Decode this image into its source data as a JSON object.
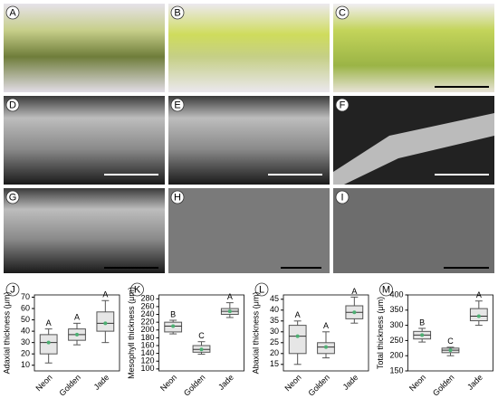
{
  "panels": [
    "A",
    "B",
    "C",
    "D",
    "E",
    "F",
    "G",
    "H",
    "I"
  ],
  "chart_data": [
    {
      "type": "box",
      "panel": "J",
      "y_label": "Adaxial thickness (μm)",
      "categories": [
        "Neon",
        "Golden",
        "Jade"
      ],
      "boxes": [
        {
          "min": 12,
          "q1": 20,
          "median": 30,
          "q3": 37,
          "max": 42
        },
        {
          "min": 28,
          "q1": 32,
          "median": 37,
          "q3": 42,
          "max": 47
        },
        {
          "min": 30,
          "q1": 40,
          "median": 47,
          "q3": 57,
          "max": 67
        }
      ],
      "letters": [
        "A",
        "A",
        "A"
      ],
      "ylim": [
        5,
        72
      ],
      "yticks": [
        10,
        20,
        30,
        40,
        50,
        60,
        70
      ]
    },
    {
      "type": "box",
      "panel": "K",
      "y_label": "Mesophyll thickness (μm)",
      "categories": [
        "Neon",
        "Golden",
        "Jade"
      ],
      "boxes": [
        {
          "min": 190,
          "q1": 195,
          "median": 210,
          "q3": 220,
          "max": 225
        },
        {
          "min": 138,
          "q1": 143,
          "median": 150,
          "q3": 160,
          "max": 170
        },
        {
          "min": 232,
          "q1": 240,
          "median": 248,
          "q3": 255,
          "max": 270
        }
      ],
      "letters": [
        "B",
        "C",
        "A"
      ],
      "ylim": [
        95,
        290
      ],
      "yticks": [
        100,
        120,
        140,
        160,
        180,
        200,
        220,
        240,
        260,
        280
      ]
    },
    {
      "type": "box",
      "panel": "L",
      "y_label": "Abaxial thickness (μm)",
      "categories": [
        "Neon",
        "Golden",
        "Jade"
      ],
      "boxes": [
        {
          "min": 15,
          "q1": 20,
          "median": 28,
          "q3": 33,
          "max": 35
        },
        {
          "min": 18,
          "q1": 20,
          "median": 23,
          "q3": 25,
          "max": 30
        },
        {
          "min": 34,
          "q1": 36,
          "median": 39,
          "q3": 42,
          "max": 46
        }
      ],
      "letters": [
        "A",
        "A",
        "A"
      ],
      "ylim": [
        12,
        47
      ],
      "yticks": [
        15,
        20,
        25,
        30,
        35,
        40,
        45
      ]
    },
    {
      "type": "box",
      "panel": "M",
      "y_label": "Total thickness (μm)",
      "categories": [
        "Neon",
        "Golden",
        "Jade"
      ],
      "boxes": [
        {
          "min": 245,
          "q1": 255,
          "median": 268,
          "q3": 280,
          "max": 290
        },
        {
          "min": 200,
          "q1": 210,
          "median": 218,
          "q3": 225,
          "max": 228
        },
        {
          "min": 300,
          "q1": 315,
          "median": 330,
          "q3": 355,
          "max": 380
        }
      ],
      "letters": [
        "B",
        "C",
        "A"
      ],
      "ylim": [
        150,
        400
      ],
      "yticks": [
        150,
        200,
        250,
        300,
        350,
        400
      ]
    }
  ]
}
